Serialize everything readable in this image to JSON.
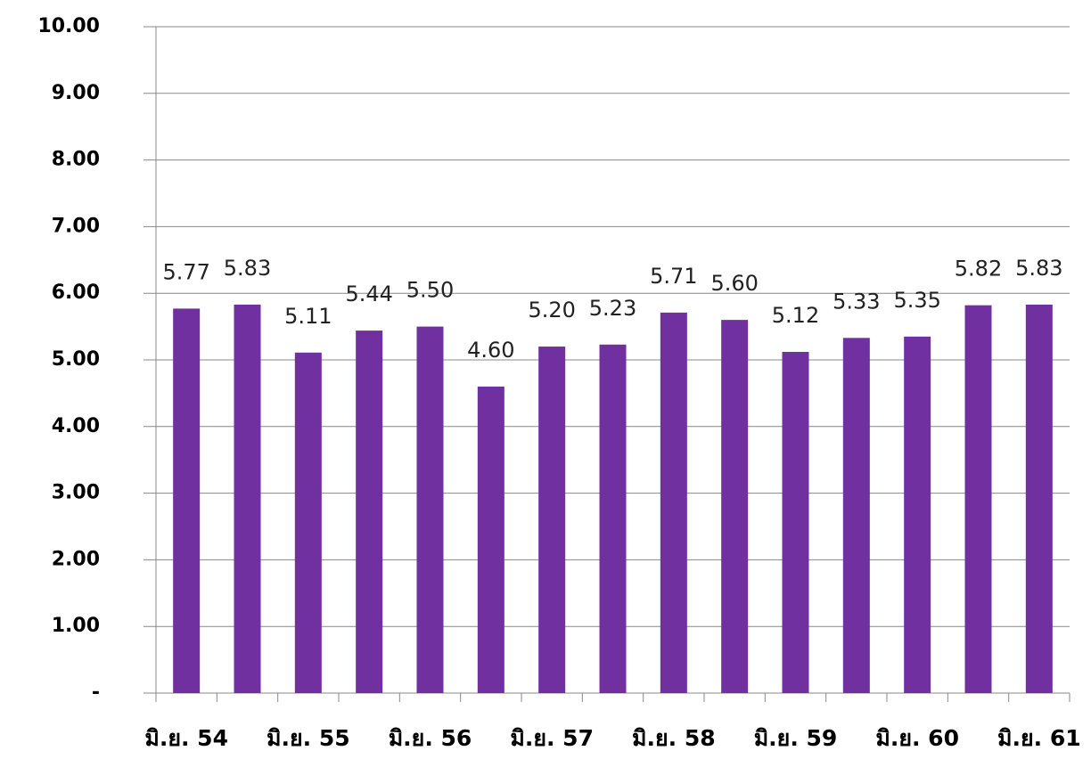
{
  "chart_data": {
    "type": "bar",
    "categories": [
      "มิ.ย. 54",
      null,
      "มิ.ย. 55",
      null,
      "มิ.ย. 56",
      null,
      "มิ.ย. 57",
      null,
      "มิ.ย. 58",
      null,
      "มิ.ย. 59",
      null,
      "มิ.ย. 60",
      null,
      "มิ.ย. 61"
    ],
    "values": [
      5.77,
      5.83,
      5.11,
      5.44,
      5.5,
      4.6,
      5.2,
      5.23,
      5.71,
      5.6,
      5.12,
      5.33,
      5.35,
      5.82,
      5.83
    ],
    "value_labels": [
      "5.77",
      "5.83",
      "5.11",
      "5.44",
      "5.50",
      "4.60",
      "5.20",
      "5.23",
      "5.71",
      "5.60",
      "5.12",
      "5.33",
      "5.35",
      "5.82",
      "5.83"
    ],
    "color": "#7030a0",
    "ylim": [
      0,
      10
    ],
    "yticks": [
      {
        "value": 0,
        "label": "-"
      },
      {
        "value": 1,
        "label": "1.00"
      },
      {
        "value": 2,
        "label": "2.00"
      },
      {
        "value": 3,
        "label": "3.00"
      },
      {
        "value": 4,
        "label": "4.00"
      },
      {
        "value": 5,
        "label": "5.00"
      },
      {
        "value": 6,
        "label": "6.00"
      },
      {
        "value": 7,
        "label": "7.00"
      },
      {
        "value": 8,
        "label": "8.00"
      },
      {
        "value": 9,
        "label": "9.00"
      },
      {
        "value": 10,
        "label": "10.00"
      }
    ],
    "grid": true
  }
}
